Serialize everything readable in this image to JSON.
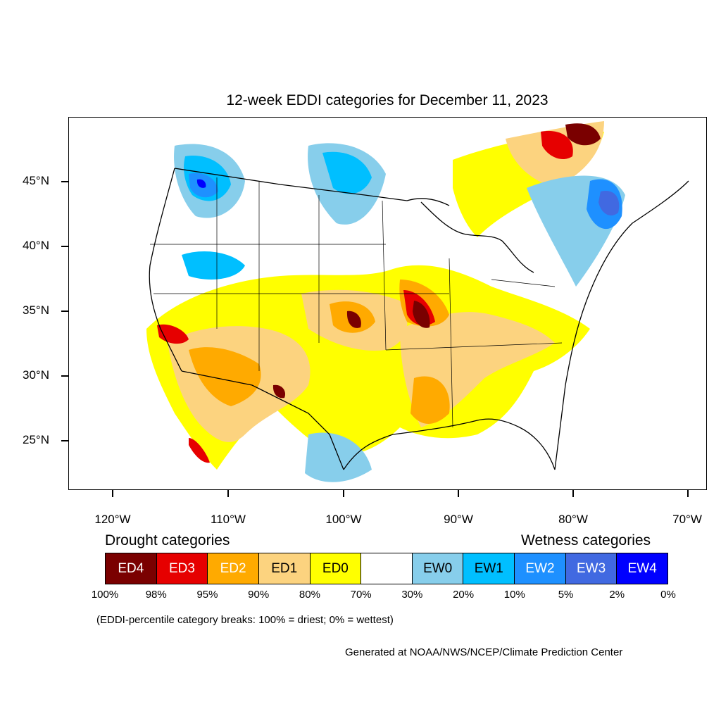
{
  "title": "12-week EDDI categories for December 11, 2023",
  "lat_labels": [
    "45°N",
    "40°N",
    "35°N",
    "30°N",
    "25°N"
  ],
  "lon_labels": [
    "120°W",
    "110°W",
    "100°W",
    "90°W",
    "80°W",
    "70°W"
  ],
  "legend": {
    "drought_title": "Drought categories",
    "wetness_title": "Wetness categories",
    "categories": [
      {
        "label": "ED4",
        "color": "#7a0000",
        "text_color": "#ffffff"
      },
      {
        "label": "ED3",
        "color": "#e60000",
        "text_color": "#ffffff"
      },
      {
        "label": "ED2",
        "color": "#ffaa00",
        "text_color": "#ffffff"
      },
      {
        "label": "ED1",
        "color": "#fcd37f",
        "text_color": "#000000"
      },
      {
        "label": "ED0",
        "color": "#ffff00",
        "text_color": "#000000"
      },
      {
        "label": "",
        "color": "#ffffff",
        "text_color": "#000000"
      },
      {
        "label": "EW0",
        "color": "#87ceeb",
        "text_color": "#000000"
      },
      {
        "label": "EW1",
        "color": "#00bfff",
        "text_color": "#000000"
      },
      {
        "label": "EW2",
        "color": "#1e90ff",
        "text_color": "#ffffff"
      },
      {
        "label": "EW3",
        "color": "#4169e1",
        "text_color": "#ffffff"
      },
      {
        "label": "EW4",
        "color": "#0000ff",
        "text_color": "#ffffff"
      }
    ],
    "breaks": [
      "100%",
      "98%",
      "95%",
      "90%",
      "80%",
      "70%",
      "30%",
      "20%",
      "10%",
      "5%",
      "2%",
      "0%"
    ]
  },
  "note": "(EDDI-percentile category breaks: 100% = driest; 0% = wettest)",
  "credit": "Generated at NOAA/NWS/NCEP/Climate Prediction Center"
}
